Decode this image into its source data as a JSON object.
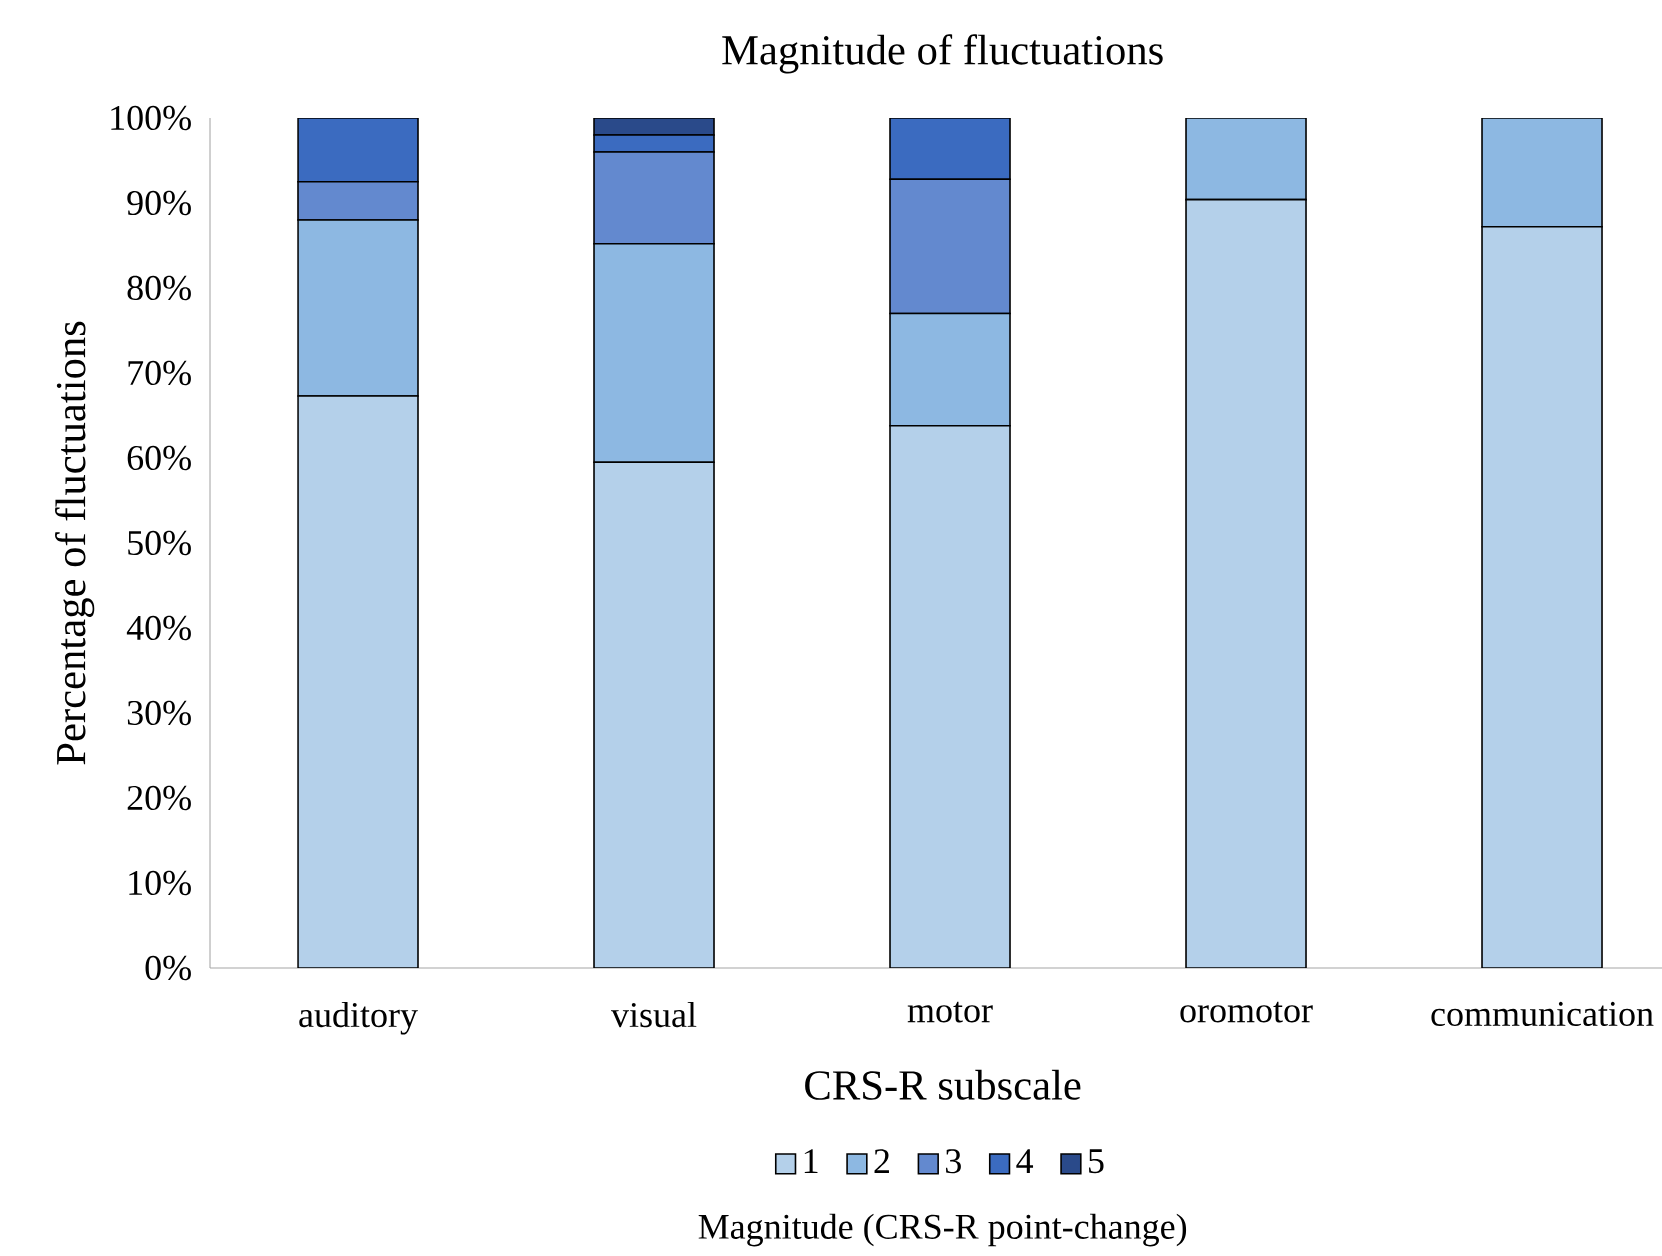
{
  "chart_data": {
    "type": "bar",
    "stacked": true,
    "title": "Magnitude  of fluctuations",
    "xlabel": "CRS-R subscale",
    "ylabel": "Percentage of fluctuations",
    "legend_title": "Magnitude  (CRS-R point-change)",
    "legend": "bottom",
    "categories": [
      "auditory",
      "visual",
      "motor",
      "oromotor",
      "communication"
    ],
    "ylim": [
      0,
      100
    ],
    "yticks": [
      {
        "value": 0,
        "label": "0%"
      },
      {
        "value": 10,
        "label": "10%"
      },
      {
        "value": 20,
        "label": "20%"
      },
      {
        "value": 30,
        "label": "30%"
      },
      {
        "value": 40,
        "label": "40%"
      },
      {
        "value": 50,
        "label": "50%"
      },
      {
        "value": 60,
        "label": "60%"
      },
      {
        "value": 70,
        "label": "70%"
      },
      {
        "value": 80,
        "label": "80%"
      },
      {
        "value": 90,
        "label": "90%"
      },
      {
        "value": 100,
        "label": "100%"
      }
    ],
    "series": [
      {
        "name": "1",
        "color": "#b4d0ea",
        "values": [
          67.3,
          59.5,
          63.8,
          90.4,
          87.2
        ]
      },
      {
        "name": "2",
        "color": "#8db8e2",
        "values": [
          20.7,
          25.7,
          13.2,
          9.6,
          12.8
        ]
      },
      {
        "name": "3",
        "color": "#6389cf",
        "values": [
          4.5,
          10.8,
          15.8,
          null,
          null
        ]
      },
      {
        "name": "4",
        "color": "#3b6bc0",
        "values": [
          7.5,
          2.0,
          7.2,
          null,
          null
        ]
      },
      {
        "name": "5",
        "color": "#2a4a8a",
        "values": [
          null,
          2.0,
          null,
          null,
          null
        ]
      }
    ]
  }
}
